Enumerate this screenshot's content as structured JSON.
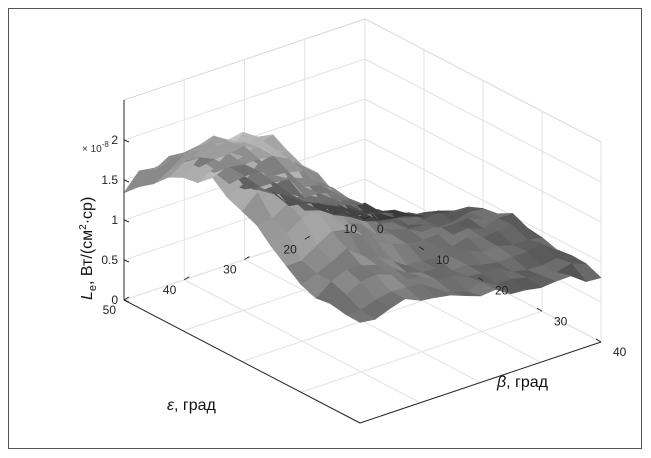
{
  "chart_data": {
    "type": "surface",
    "z_label_var": "L",
    "z_label_sub": "e",
    "z_label_units_a": ", Вт/(см",
    "z_label_units_sup": "2",
    "z_label_units_b": "·ср)",
    "z_scale_base": "× 10",
    "z_scale_exp": "-8",
    "x_label_var": "β",
    "x_label_text": ", град",
    "y_label_var": "ε",
    "y_label_text": ", град",
    "x_ticks": [
      "0",
      "10",
      "20",
      "30",
      "40"
    ],
    "y_ticks": [
      "50",
      "40",
      "30",
      "20",
      "10"
    ],
    "z_ticks": [
      "0",
      "0.5",
      "1",
      "1.5",
      "2"
    ],
    "xlim": [
      0,
      40
    ],
    "ylim": [
      10,
      50
    ],
    "zlim": [
      0,
      2.5
    ],
    "colormap": "gray",
    "grid": true,
    "x_values": [
      0,
      2.5,
      5,
      7.5,
      10,
      12.5,
      15,
      17.5,
      20,
      22.5,
      25,
      27.5,
      30,
      32.5,
      35,
      37.5,
      40
    ],
    "y_values": [
      50,
      47.5,
      45,
      42.5,
      40,
      37.5,
      35,
      32.5,
      30,
      27.5,
      25,
      22.5,
      20,
      17.5,
      15,
      12.5,
      10
    ],
    "z_values": [
      [
        1.4,
        1.55,
        1.7,
        1.85,
        1.95,
        2.0,
        2.05,
        2.0,
        1.9,
        1.75,
        1.6,
        1.45,
        1.35,
        1.3,
        1.3,
        1.25,
        1.2
      ],
      [
        1.5,
        1.65,
        1.8,
        1.95,
        2.05,
        2.1,
        2.15,
        2.1,
        2.0,
        1.85,
        1.7,
        1.55,
        1.45,
        1.4,
        1.35,
        1.3,
        1.25
      ],
      [
        1.55,
        1.7,
        1.9,
        2.05,
        2.15,
        2.25,
        2.3,
        2.2,
        2.1,
        1.95,
        1.8,
        1.65,
        1.5,
        1.45,
        1.4,
        1.35,
        1.3
      ],
      [
        1.6,
        1.75,
        1.95,
        2.1,
        2.25,
        2.35,
        2.4,
        2.3,
        2.15,
        2.0,
        1.85,
        1.7,
        1.55,
        1.5,
        1.45,
        1.4,
        1.35
      ],
      [
        1.5,
        1.65,
        1.85,
        2.0,
        2.15,
        2.3,
        2.35,
        2.25,
        2.1,
        1.95,
        1.8,
        1.65,
        1.5,
        1.45,
        1.4,
        1.35,
        1.3
      ],
      [
        1.35,
        1.5,
        1.7,
        1.85,
        2.0,
        2.1,
        2.15,
        2.05,
        1.95,
        1.8,
        1.65,
        1.5,
        1.4,
        1.35,
        1.3,
        1.3,
        1.25
      ],
      [
        1.2,
        1.35,
        1.5,
        1.65,
        1.75,
        1.85,
        1.9,
        1.85,
        1.75,
        1.65,
        1.5,
        1.4,
        1.3,
        1.25,
        1.25,
        1.2,
        1.2
      ],
      [
        1.05,
        1.2,
        1.35,
        1.45,
        1.55,
        1.6,
        1.65,
        1.6,
        1.55,
        1.45,
        1.35,
        1.3,
        1.2,
        1.2,
        1.2,
        1.15,
        1.15
      ],
      [
        0.9,
        1.0,
        1.15,
        1.25,
        1.35,
        1.4,
        1.45,
        1.4,
        1.35,
        1.3,
        1.25,
        1.2,
        1.15,
        1.15,
        1.15,
        1.1,
        1.1
      ],
      [
        0.8,
        0.85,
        0.95,
        1.05,
        1.15,
        1.2,
        1.25,
        1.25,
        1.2,
        1.2,
        1.15,
        1.15,
        1.15,
        1.1,
        1.1,
        1.1,
        1.05
      ],
      [
        0.65,
        0.7,
        0.8,
        0.9,
        1.0,
        1.05,
        1.1,
        1.1,
        1.1,
        1.1,
        1.1,
        1.1,
        1.1,
        1.1,
        1.05,
        1.05,
        1.0
      ],
      [
        0.55,
        0.6,
        0.65,
        0.75,
        0.85,
        0.9,
        0.95,
        1.0,
        1.0,
        1.05,
        1.05,
        1.05,
        1.05,
        1.05,
        1.0,
        1.0,
        1.0
      ],
      [
        0.4,
        0.45,
        0.55,
        0.6,
        0.7,
        0.8,
        0.85,
        0.9,
        0.95,
        1.0,
        1.0,
        1.05,
        1.05,
        1.0,
        1.0,
        0.95,
        0.95
      ],
      [
        0.3,
        0.35,
        0.45,
        0.5,
        0.6,
        0.7,
        0.8,
        0.85,
        0.9,
        0.95,
        1.0,
        1.0,
        1.0,
        1.0,
        0.95,
        0.95,
        0.9
      ],
      [
        0.25,
        0.3,
        0.35,
        0.45,
        0.55,
        0.65,
        0.75,
        0.85,
        0.9,
        0.95,
        1.0,
        1.0,
        1.0,
        0.95,
        0.95,
        0.9,
        0.9
      ],
      [
        0.2,
        0.25,
        0.3,
        0.4,
        0.5,
        0.6,
        0.7,
        0.8,
        0.9,
        0.95,
        1.0,
        1.0,
        0.95,
        0.95,
        0.9,
        0.9,
        0.85
      ],
      [
        0.15,
        0.2,
        0.25,
        0.35,
        0.45,
        0.55,
        0.7,
        0.8,
        0.9,
        0.95,
        1.0,
        0.95,
        0.95,
        0.9,
        0.9,
        0.85,
        0.85
      ]
    ]
  }
}
